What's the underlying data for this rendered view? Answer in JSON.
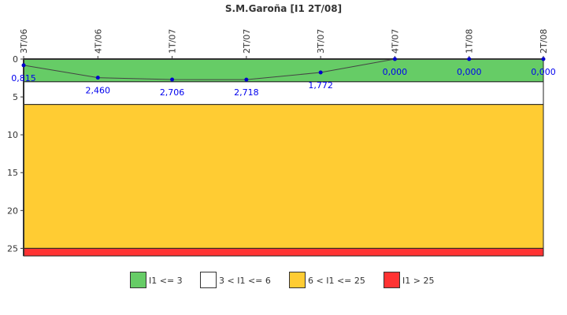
{
  "chart_data": {
    "type": "line",
    "title": "S.M.Garoña [I1 2T/08]",
    "categories": [
      "3T/06",
      "4T/06",
      "1T/07",
      "2T/07",
      "3T/07",
      "4T/07",
      "1T/08",
      "2T/08"
    ],
    "values": [
      0.815,
      2.46,
      2.706,
      2.718,
      1.772,
      0.0,
      0.0,
      0.0
    ],
    "data_labels": [
      "0,815",
      "2,460",
      "2,706",
      "2,718",
      "1,772",
      "0,000",
      "0,000",
      "0,000"
    ],
    "ylim": [
      0,
      26
    ],
    "y_inverted": true,
    "yticks": [
      "0",
      "5",
      "10",
      "15",
      "20",
      "25"
    ],
    "ytick_values": [
      0,
      5,
      10,
      15,
      20,
      25
    ],
    "bands": [
      {
        "from": 0,
        "to": 3,
        "color": "#66cc66",
        "label": "I1 <= 3"
      },
      {
        "from": 3,
        "to": 6,
        "color": "#ffffff",
        "label": "3 < I1 <= 6"
      },
      {
        "from": 6,
        "to": 25,
        "color": "#ffcc33",
        "label": "6 < I1 <= 25"
      },
      {
        "from": 25,
        "to": 26,
        "color": "#ff3333",
        "label": "I1 > 25"
      }
    ],
    "line_color": "#444444",
    "marker_color": "#0000cc",
    "legend": "bottom"
  }
}
